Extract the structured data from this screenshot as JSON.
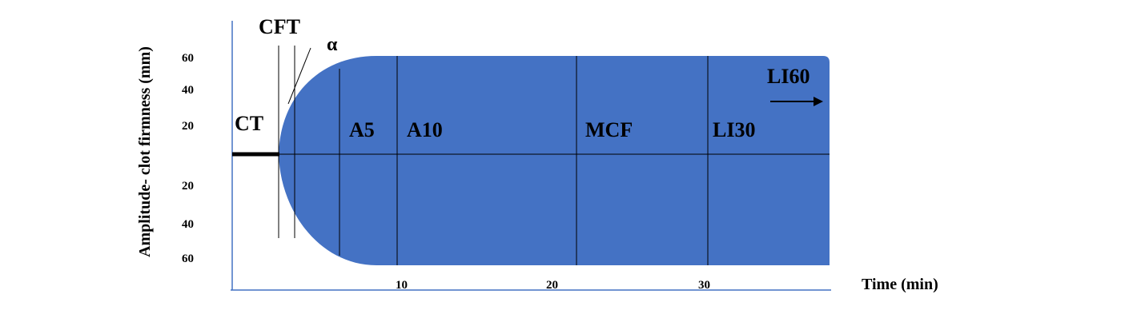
{
  "diagram": {
    "y_axis_title": "Amplitude- clot firmness (mm)",
    "x_axis_title": "Time (min)",
    "y_ticks_upper": [
      "60",
      "40",
      "20"
    ],
    "y_ticks_lower": [
      "20",
      "40",
      "60"
    ],
    "x_ticks": [
      "10",
      "20",
      "30"
    ],
    "labels": {
      "ct": "CT",
      "cft": "CFT",
      "alpha": "α",
      "a5": "A5",
      "a10": "A10",
      "mcf": "MCF",
      "li30": "LI30",
      "li60": "LI60"
    },
    "colors": {
      "fill": "#4472C4",
      "axis": "#4472C4",
      "lines": "#000000"
    }
  }
}
